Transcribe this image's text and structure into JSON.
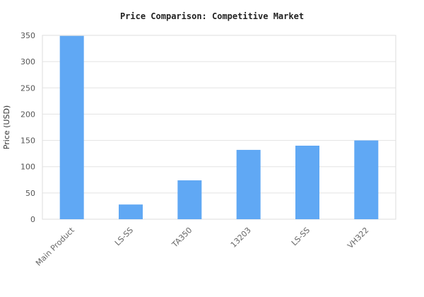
{
  "chart_data": {
    "type": "bar",
    "title": "Price Comparison: Competitive Market",
    "xlabel": "",
    "ylabel": "Price (USD)",
    "categories": [
      "Main Product",
      "LS-SS",
      "TA350",
      "13203",
      "LS-SS",
      "VH322"
    ],
    "values": [
      349,
      28,
      74,
      132,
      140,
      150
    ],
    "ylim": [
      0,
      350
    ],
    "yticks": [
      0,
      50,
      100,
      150,
      200,
      250,
      300,
      350
    ],
    "grid": true,
    "bar_color": "#60a8f4"
  }
}
